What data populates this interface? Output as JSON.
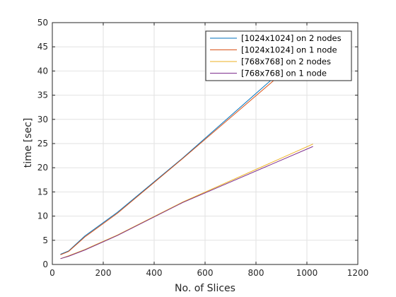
{
  "chart_data": {
    "type": "line",
    "xlabel": "No. of Slices",
    "ylabel": "time [sec]",
    "xlim": [
      0,
      1200
    ],
    "ylim": [
      0,
      50
    ],
    "xticks": [
      0,
      200,
      400,
      600,
      800,
      1000,
      1200
    ],
    "yticks": [
      0,
      5,
      10,
      15,
      20,
      25,
      30,
      35,
      40,
      45,
      50
    ],
    "grid": true,
    "legend_position": "top-right",
    "series": [
      {
        "name": "[1024x1024] on 2 nodes",
        "color": "#0072BD",
        "x": [
          32,
          64,
          128,
          256,
          512,
          900
        ],
        "y": [
          2.1,
          2.8,
          5.9,
          10.8,
          22.0,
          40.0
        ]
      },
      {
        "name": "[1024x1024] on 1 node",
        "color": "#D95319",
        "x": [
          32,
          64,
          128,
          256,
          512,
          880
        ],
        "y": [
          2.0,
          2.7,
          5.7,
          10.6,
          21.9,
          38.5
        ]
      },
      {
        "name": "[768x768] on 2 nodes",
        "color": "#EDB120",
        "x": [
          32,
          64,
          128,
          256,
          512,
          1024
        ],
        "y": [
          1.2,
          1.8,
          3.1,
          6.1,
          12.9,
          24.9
        ]
      },
      {
        "name": "[768x768] on 1 node",
        "color": "#7E2F8E",
        "x": [
          32,
          64,
          128,
          256,
          512,
          1024
        ],
        "y": [
          1.2,
          1.7,
          3.0,
          6.0,
          12.8,
          24.4
        ]
      }
    ]
  }
}
